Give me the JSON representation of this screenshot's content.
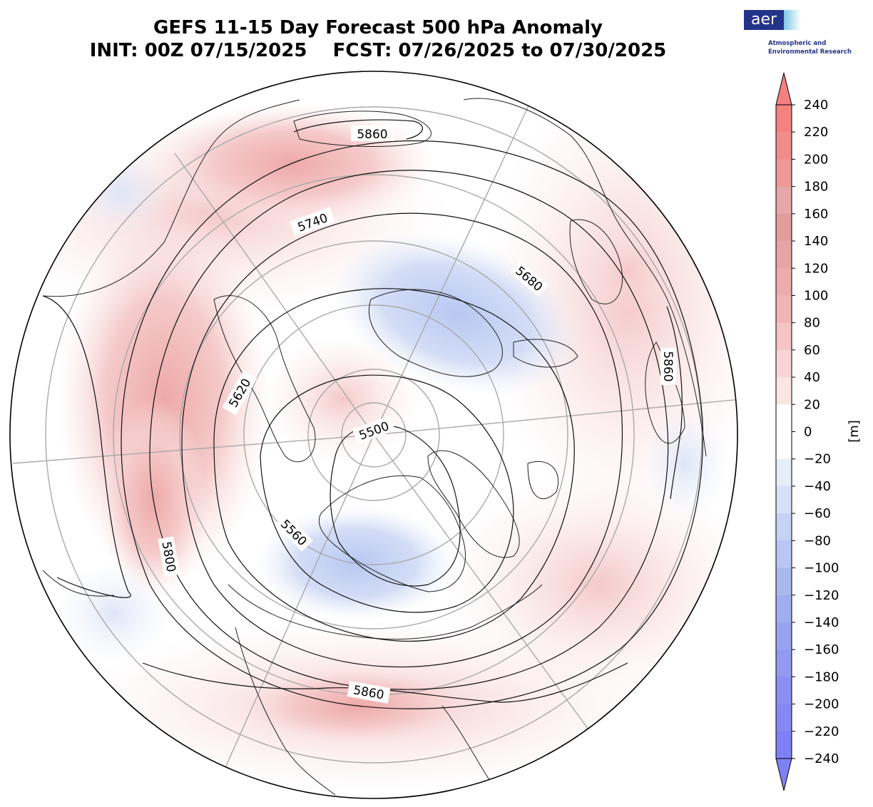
{
  "title_line1": "GEFS 11-15 Day Forecast 500 hPa Anomaly",
  "title_line2": "INIT: 00Z 07/15/2025    FCST: 07/26/2025 to 07/30/2025",
  "logo": {
    "wordmark": "aer",
    "line1": "Atmospheric and",
    "line2": "Environmental Research"
  },
  "colorbar": {
    "unit_label": "[m]",
    "ticks": [
      "240",
      "220",
      "200",
      "180",
      "160",
      "140",
      "120",
      "100",
      "80",
      "60",
      "40",
      "20",
      "0",
      "−20",
      "−40",
      "−60",
      "−80",
      "−100",
      "−120",
      "−140",
      "−160",
      "−180",
      "−200",
      "−220",
      "−240"
    ],
    "levels": [
      -240,
      -220,
      -200,
      -180,
      -160,
      -140,
      -120,
      -100,
      -80,
      -60,
      -40,
      -20,
      0,
      20,
      40,
      60,
      80,
      100,
      120,
      140,
      160,
      180,
      200,
      220,
      240
    ],
    "extend": "both",
    "colors_positive": [
      "#ffffff",
      "#fbe4e4",
      "#f8d4d4",
      "#f5c4c4",
      "#f1b4b4",
      "#edacac",
      "#e7a4a4",
      "#e29c9c",
      "#e5a7a7",
      "#ee9898",
      "#f28c8c",
      "#f58080"
    ],
    "colors_negative": [
      "#ffffff",
      "#e6ecf8",
      "#d6e0f6",
      "#c6d2f4",
      "#b8c6f2",
      "#aab8f0",
      "#a0aef0",
      "#98a4f0",
      "#929af0",
      "#8c90f2",
      "#8686f4",
      "#8080f6"
    ]
  },
  "map": {
    "projection": "north-polar-stereographic",
    "height_contours": [
      "5500",
      "5560",
      "5620",
      "5680",
      "5740",
      "5800",
      "5860"
    ],
    "anomaly_field": "500 hPa height anomaly"
  }
}
